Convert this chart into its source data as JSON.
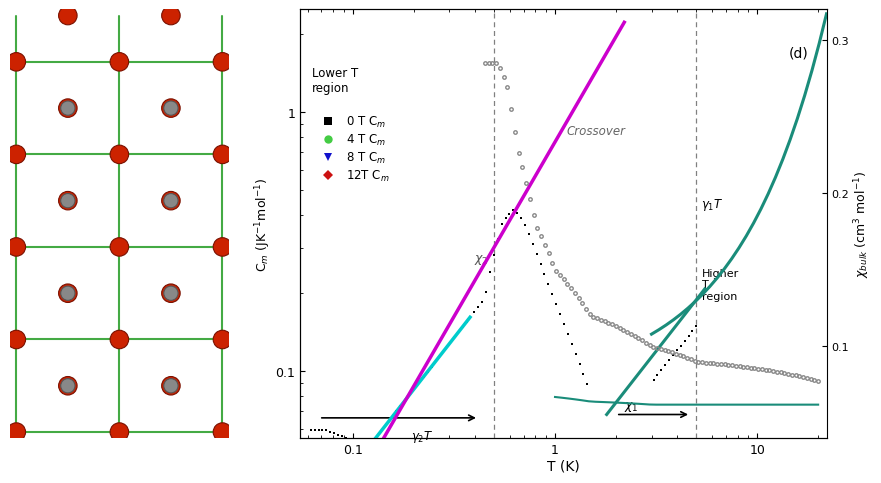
{
  "left_panel": {
    "red_atom_color": "#cc2200",
    "gray_atom_color": "#888888",
    "green_line_color": "#44aa44",
    "red_line_color": "#cc2200"
  },
  "right_panel": {
    "xlim": [
      0.055,
      22.0
    ],
    "ylim_cm": [
      0.055,
      2.5
    ],
    "ylim_chi": [
      0.04,
      0.32
    ],
    "yticks_chi": [
      0.1,
      0.2,
      0.3
    ],
    "xticks": [
      0.1,
      1.0,
      10.0
    ],
    "dashed_T": [
      0.5,
      5.0
    ],
    "colors": {
      "magenta": "#cc00cc",
      "cyan": "#00cccc",
      "teal": "#1a8c7a",
      "gray_data": "#aaaaaa",
      "black": "#000000"
    }
  }
}
